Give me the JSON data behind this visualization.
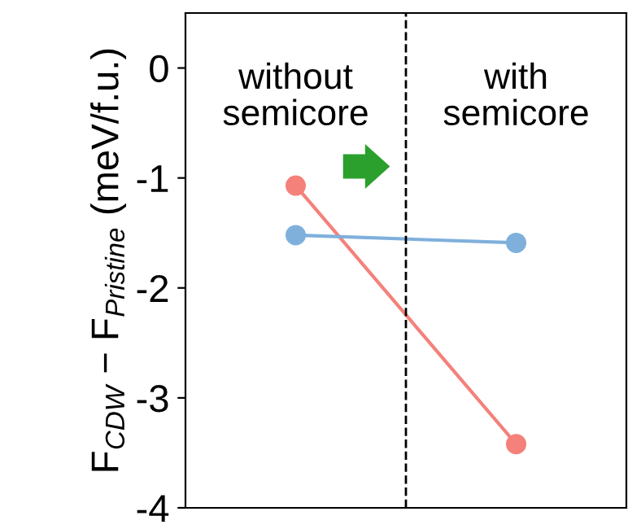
{
  "chart_data": {
    "type": "line",
    "ylabel": "F$_{CDW}$ − F$_{Pristine}$ (meV/f.u.)",
    "categories": [
      null,
      null
    ],
    "series": [
      {
        "color": "#f4817a",
        "values": [
          -1.07,
          -3.42
        ]
      },
      {
        "color": "#7fb0dc",
        "values": [
          -1.52,
          -1.59
        ]
      }
    ],
    "ylim": [
      -4,
      0.5
    ],
    "yticks": [
      {
        "value": 0,
        "label": "0"
      },
      {
        "value": -1,
        "label": "-1"
      },
      {
        "value": -2,
        "label": "-2"
      },
      {
        "value": -3,
        "label": "-3"
      },
      {
        "value": -4,
        "label": "-4"
      }
    ],
    "marker": "circle",
    "line_style": "solid",
    "grid": false,
    "legend": false,
    "annotations": [
      "without\nsemicore",
      "with\nsemicore"
    ]
  }
}
